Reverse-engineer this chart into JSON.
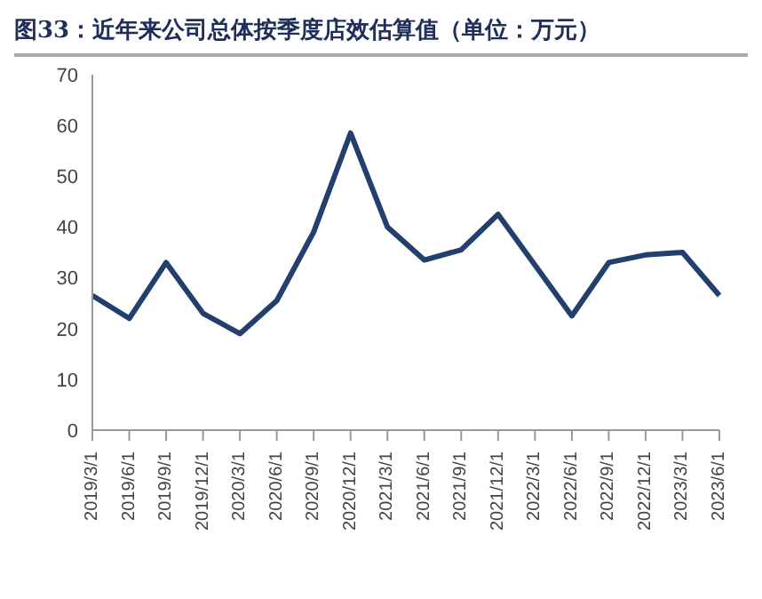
{
  "chart_data": {
    "type": "line",
    "title": "图33：近年来公司总体按季度店效估算值（单位：万元）",
    "categories": [
      "2019/3/1",
      "2019/6/1",
      "2019/9/1",
      "2019/12/1",
      "2020/3/1",
      "2020/6/1",
      "2020/9/1",
      "2020/12/1",
      "2021/3/1",
      "2021/6/1",
      "2021/9/1",
      "2021/12/1",
      "2022/3/1",
      "2022/6/1",
      "2022/9/1",
      "2022/12/1",
      "2023/3/1",
      "2023/6/1"
    ],
    "series": [
      {
        "color": "#223f6e",
        "values": [
          26.5,
          22,
          33,
          23,
          19,
          25.5,
          39,
          58.5,
          40,
          33.5,
          35.5,
          42.5,
          32.5,
          22.5,
          33,
          34.5,
          35,
          26.5
        ]
      }
    ],
    "ylim": [
      0,
      70
    ],
    "yticks": [
      0,
      10,
      20,
      30,
      40,
      50,
      60,
      70
    ],
    "grid": false,
    "marker": "none",
    "line_style": "solid"
  }
}
